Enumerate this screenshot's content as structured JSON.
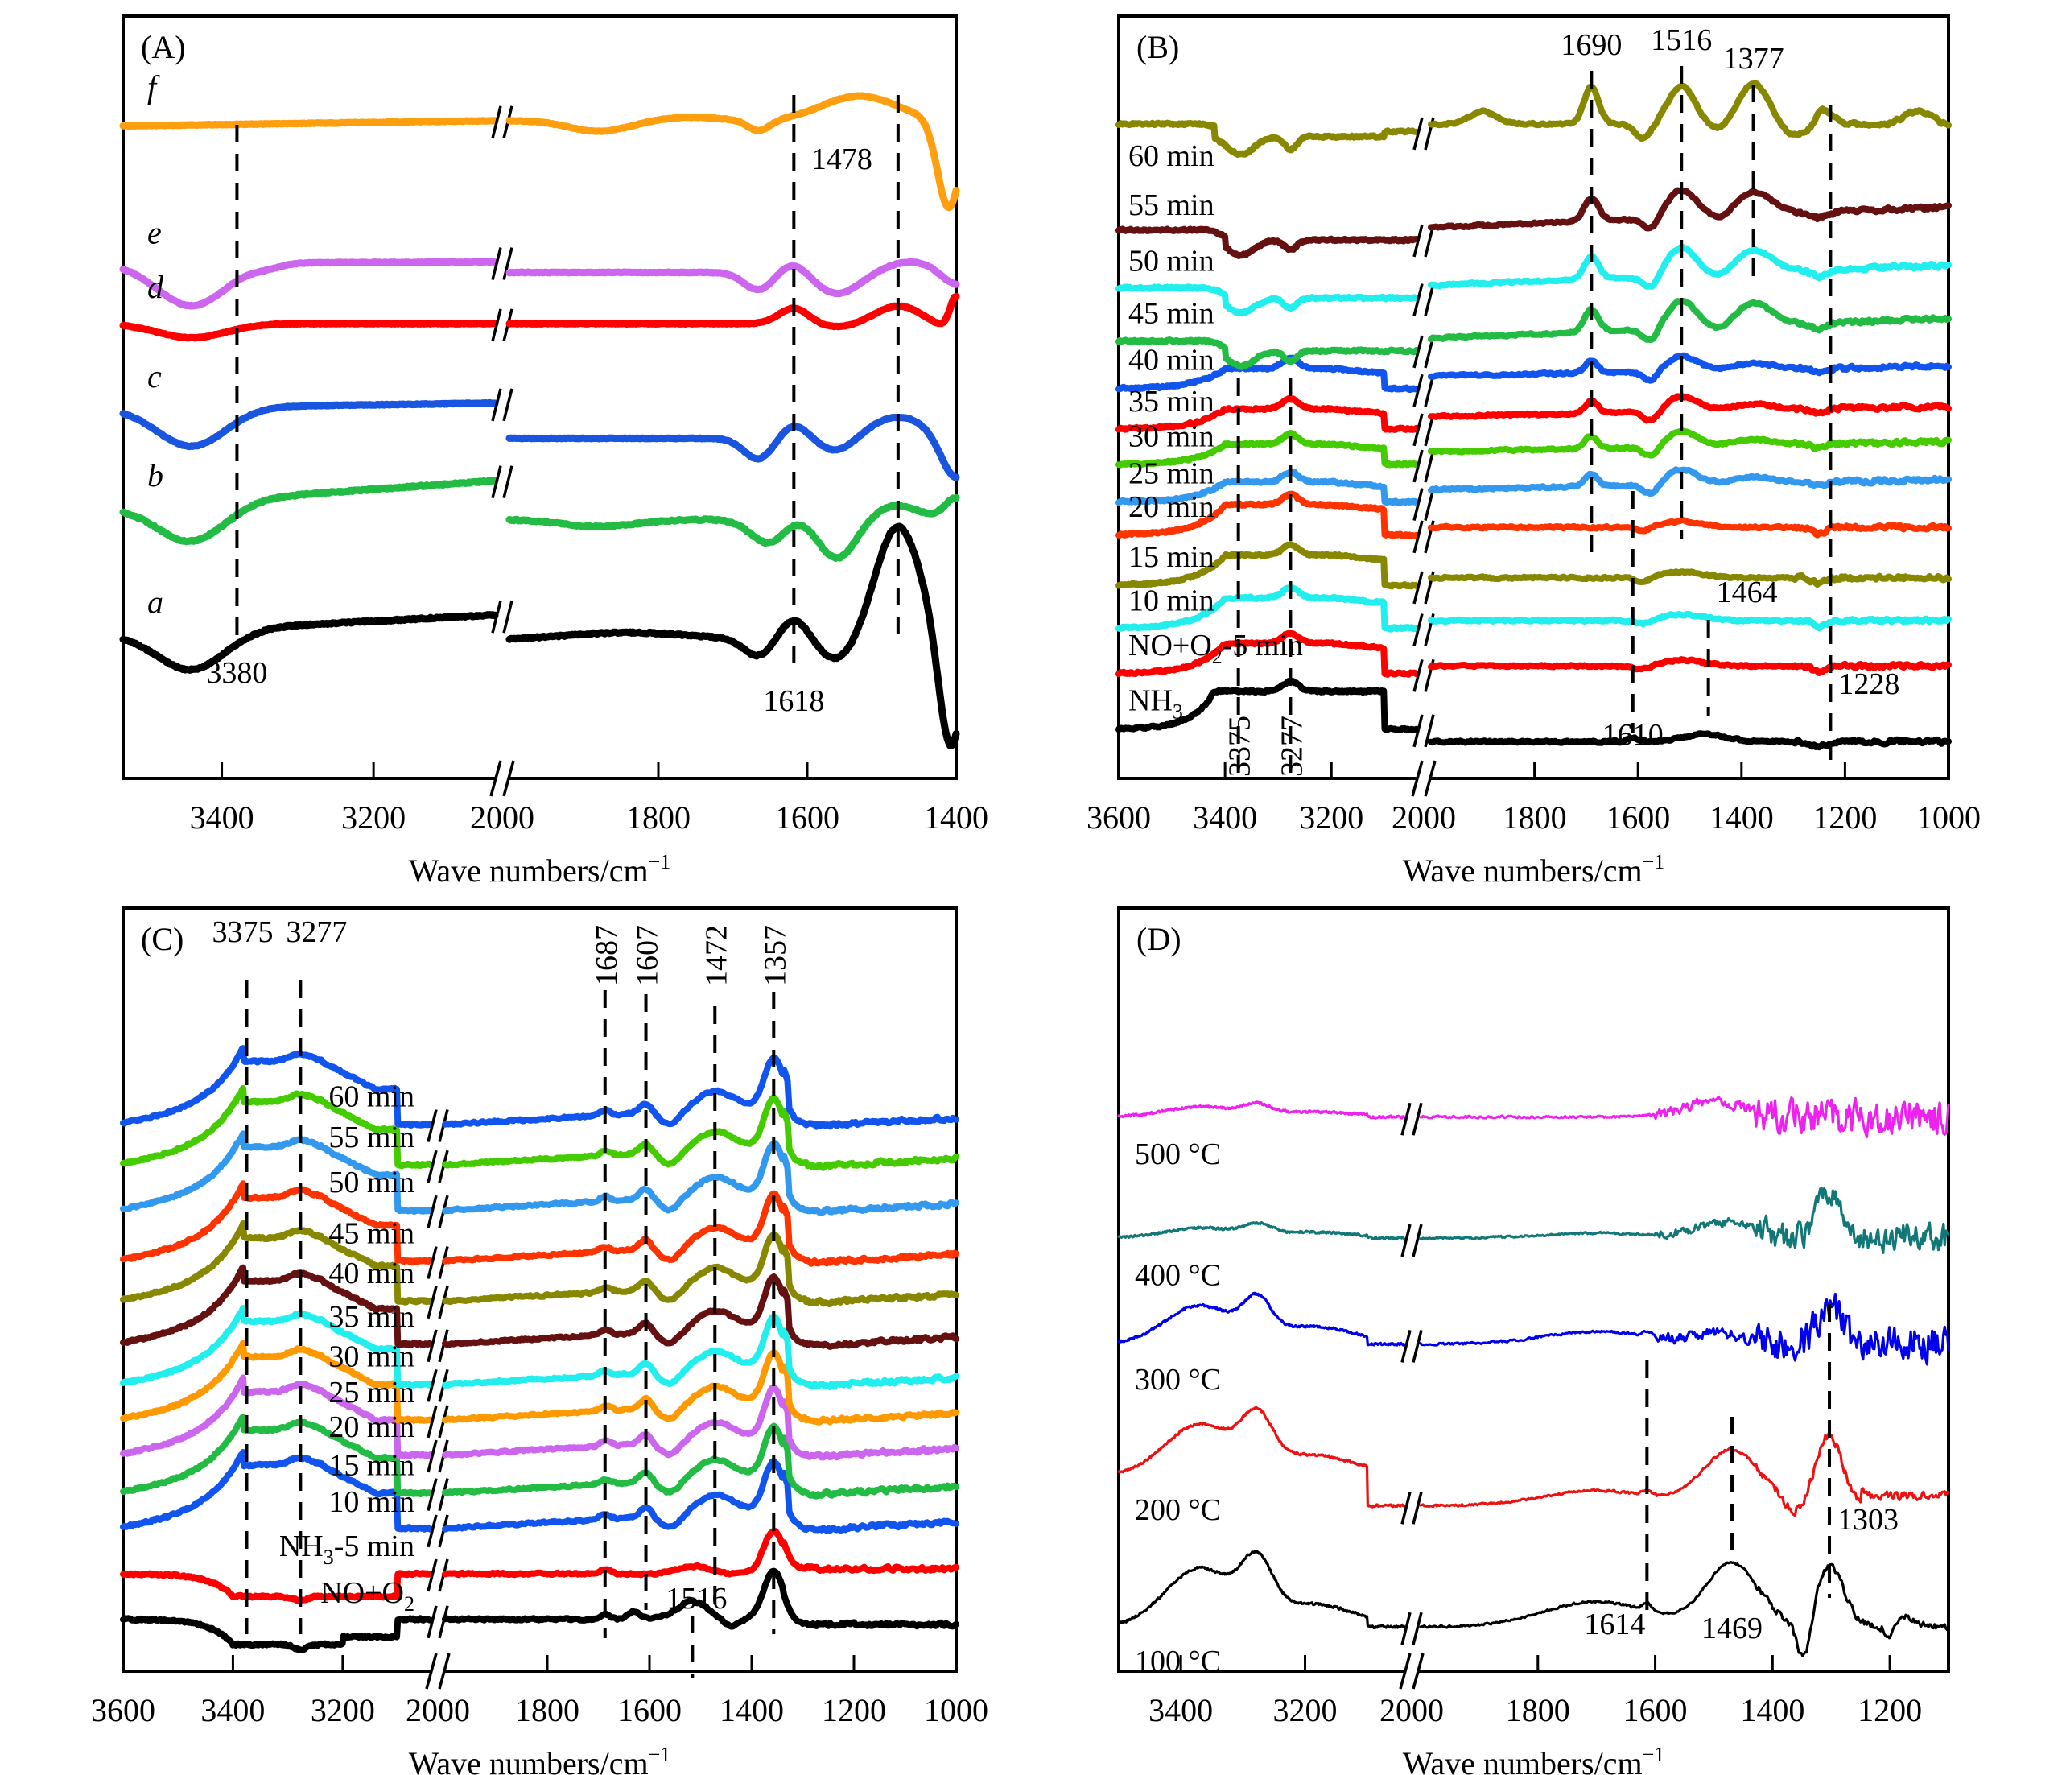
{
  "figure": {
    "axis_title": "Wave numbers/cm",
    "axis_title_sup": "−1"
  },
  "chart_data": [
    {
      "id": "A",
      "type": "line",
      "title": "(A)",
      "xlabel": "Wave numbers/cm−1",
      "ylabel": "",
      "x_reversed": true,
      "x_segments": [
        [
          3530,
          3040
        ],
        [
          2000,
          1400
        ]
      ],
      "x_break_label": "2000",
      "x_ticks": [
        {
          "value": 3400,
          "label": "3400",
          "segment": 0
        },
        {
          "value": 3200,
          "label": "3200",
          "segment": 0
        },
        {
          "value": 2000,
          "label": "2000",
          "segment": 1
        },
        {
          "value": 1800,
          "label": "1800",
          "segment": 1
        },
        {
          "value": 1600,
          "label": "1600",
          "segment": 1
        },
        {
          "value": 1400,
          "label": "1400",
          "segment": 1
        }
      ],
      "y_range": [
        0,
        10
      ],
      "grid": false,
      "line_style": "thick",
      "series": [
        {
          "name": "a",
          "color": "#000000",
          "offset": 1.7,
          "slope_left": 0.55,
          "right_shift": -0.35,
          "noise": 0.02,
          "features": [
            [
              3440,
              -0.55,
              45
            ],
            [
              1840,
              0.1,
              80
            ],
            [
              1665,
              -0.25,
              20
            ],
            [
              1618,
              0.3,
              20
            ],
            [
              1560,
              -0.3,
              25
            ],
            [
              1478,
              1.6,
              30
            ],
            [
              1408,
              -1.6,
              15
            ]
          ]
        },
        {
          "name": "b",
          "color": "#22bb44",
          "offset": 3.5,
          "slope_left": 0.75,
          "right_shift": -0.55,
          "noise": 0.02,
          "features": [
            [
              3440,
              -0.55,
              45
            ],
            [
              1880,
              -0.1,
              50
            ],
            [
              1650,
              -0.35,
              25
            ],
            [
              1618,
              0.1,
              20
            ],
            [
              1560,
              -0.55,
              25
            ],
            [
              1480,
              0.2,
              30
            ],
            [
              1400,
              0.3,
              15
            ]
          ]
        },
        {
          "name": "c",
          "color": "#1a55e0",
          "offset": 4.9,
          "slope_left": 0.15,
          "right_shift": -0.5,
          "noise": 0.01,
          "features": [
            [
              3440,
              -0.55,
              45
            ],
            [
              1665,
              -0.3,
              20
            ],
            [
              1618,
              0.2,
              20
            ],
            [
              1560,
              -0.2,
              25
            ],
            [
              1478,
              0.3,
              40
            ],
            [
              1400,
              -0.6,
              20
            ]
          ]
        },
        {
          "name": "d",
          "color": "#ff0000",
          "offset": 6.1,
          "slope_left": 0.0,
          "right_shift": 0.0,
          "noise": 0.01,
          "features": [
            [
              3440,
              -0.2,
              45
            ],
            [
              1618,
              0.22,
              20
            ],
            [
              1560,
              -0.05,
              25
            ],
            [
              1478,
              0.25,
              30
            ],
            [
              1420,
              -0.05,
              15
            ],
            [
              1400,
              0.4,
              8
            ]
          ]
        },
        {
          "name": "e",
          "color": "#cc66ee",
          "offset": 6.95,
          "slope_left": 0.05,
          "right_shift": -0.15,
          "noise": 0.01,
          "features": [
            [
              3440,
              -0.6,
              45
            ],
            [
              3340,
              -0.05,
              20
            ],
            [
              1665,
              -0.25,
              20
            ],
            [
              1618,
              0.15,
              20
            ],
            [
              1560,
              -0.3,
              30
            ],
            [
              1460,
              0.15,
              35
            ],
            [
              1400,
              -0.2,
              20
            ]
          ]
        },
        {
          "name": "f",
          "color": "#ff9f0f",
          "offset": 8.9,
          "slope_left": 0.15,
          "right_shift": 0.0,
          "noise": 0.01,
          "features": [
            [
              1880,
              -0.15,
              40
            ],
            [
              1760,
              0.05,
              40
            ],
            [
              1665,
              -0.15,
              15
            ],
            [
              1530,
              0.35,
              50
            ],
            [
              1410,
              -1.25,
              15
            ]
          ]
        }
      ],
      "series_labels": [
        {
          "series": "a",
          "text": "a"
        },
        {
          "series": "b",
          "text": "b"
        },
        {
          "series": "c",
          "text": "c"
        },
        {
          "series": "d",
          "text": "d"
        },
        {
          "series": "e",
          "text": "e"
        },
        {
          "series": "f",
          "text": "f"
        }
      ],
      "dashed_lines": [
        {
          "x": 3380,
          "label": "3380",
          "label_pos": "below"
        },
        {
          "x": 1618,
          "label": "1618",
          "label_pos": "below"
        },
        {
          "x": 1478,
          "label": "1478",
          "label_pos": "upper-left"
        }
      ]
    },
    {
      "id": "B",
      "type": "line",
      "title": "(B)",
      "xlabel": "Wave numbers/cm−1",
      "ylabel": "",
      "x_reversed": true,
      "x_segments": [
        [
          3600,
          3040
        ],
        [
          2000,
          1000
        ]
      ],
      "x_break_label": "2000",
      "x_ticks": [
        {
          "value": 3600,
          "label": "3600",
          "segment": 0
        },
        {
          "value": 3400,
          "label": "3400",
          "segment": 0
        },
        {
          "value": 3200,
          "label": "3200",
          "segment": 0
        },
        {
          "value": 2000,
          "label": "2000",
          "segment": 1
        },
        {
          "value": 1800,
          "label": "1800",
          "segment": 1
        },
        {
          "value": 1600,
          "label": "1600",
          "segment": 1
        },
        {
          "value": 1400,
          "label": "1400",
          "segment": 1
        },
        {
          "value": 1200,
          "label": "1200",
          "segment": 1
        },
        {
          "value": 1000,
          "label": "1000",
          "segment": 1
        }
      ],
      "y_range": [
        0,
        14
      ],
      "grid": false,
      "line_style": "thick",
      "series": [
        {
          "name": "NH3",
          "color": "#000000",
          "offset": 0.5,
          "shape": "nh3"
        },
        {
          "name": "NO+O2-5 min",
          "color": "#ff0000",
          "offset": 1.6,
          "shape": "early"
        },
        {
          "name": "10 min",
          "color": "#22eeee",
          "offset": 2.5,
          "shape": "early"
        },
        {
          "name": "15 min",
          "color": "#888800",
          "offset": 3.35,
          "shape": "early"
        },
        {
          "name": "20 min",
          "color": "#ff3300",
          "offset": 4.35,
          "shape": "early"
        },
        {
          "name": "25 min",
          "color": "#3399ee",
          "offset": 5.0,
          "shape": "mid"
        },
        {
          "name": "30 min",
          "color": "#44cc00",
          "offset": 5.75,
          "shape": "mid"
        },
        {
          "name": "35 min",
          "color": "#ff0000",
          "offset": 6.45,
          "shape": "mid"
        },
        {
          "name": "40 min",
          "color": "#1155ee",
          "offset": 7.25,
          "shape": "mid"
        },
        {
          "name": "45 min",
          "color": "#22bb44",
          "offset": 8.0,
          "shape": "late"
        },
        {
          "name": "50 min",
          "color": "#22eeee",
          "offset": 9.05,
          "shape": "late"
        },
        {
          "name": "55 min",
          "color": "#661111",
          "offset": 10.2,
          "shape": "late"
        },
        {
          "name": "60 min",
          "color": "#888800",
          "offset": 12.35,
          "shape": "latest"
        }
      ],
      "series_labels": [
        {
          "series": "NH3",
          "text": "NH",
          "sub": "3"
        },
        {
          "series": "NO+O2-5 min",
          "text": "NO+O",
          "sub": "2",
          "suffix": "-5 min"
        },
        {
          "series": "10 min",
          "text": "10 min"
        },
        {
          "series": "15 min",
          "text": "15 min"
        },
        {
          "series": "20 min",
          "text": "20 min"
        },
        {
          "series": "25 min",
          "text": "25 min"
        },
        {
          "series": "30 min",
          "text": "30 min"
        },
        {
          "series": "35 min",
          "text": "35 min"
        },
        {
          "series": "40 min",
          "text": "40 min"
        },
        {
          "series": "45 min",
          "text": "45 min"
        },
        {
          "series": "50 min",
          "text": "50 min"
        },
        {
          "series": "55 min",
          "text": "55 min"
        },
        {
          "series": "60 min",
          "text": "60 min"
        }
      ],
      "dashed_lines": [
        {
          "x": 3375,
          "label": "3375",
          "label_pos": "rotated-bottom"
        },
        {
          "x": 3277,
          "label": "3277",
          "label_pos": "rotated-bottom"
        },
        {
          "x": 1690,
          "label": "1690",
          "label_pos": "top"
        },
        {
          "x": 1610,
          "label": "1610",
          "label_pos": "below"
        },
        {
          "x": 1516,
          "label": "1516",
          "label_pos": "top"
        },
        {
          "x": 1464,
          "label": "1464",
          "label_pos": "above"
        },
        {
          "x": 1377,
          "label": "1377",
          "label_pos": "top"
        },
        {
          "x": 1228,
          "label": "1228",
          "label_pos": "right"
        }
      ]
    },
    {
      "id": "C",
      "type": "line",
      "title": "(C)",
      "xlabel": "Wave numbers/cm−1",
      "ylabel": "",
      "x_reversed": true,
      "x_segments": [
        [
          3600,
          3040
        ],
        [
          2000,
          1000
        ]
      ],
      "x_break_label": "2000",
      "x_ticks": [
        {
          "value": 3600,
          "label": "3600",
          "segment": 0
        },
        {
          "value": 3400,
          "label": "3400",
          "segment": 0
        },
        {
          "value": 3200,
          "label": "3200",
          "segment": 0
        },
        {
          "value": 2000,
          "label": "2000",
          "segment": 1
        },
        {
          "value": 1800,
          "label": "1800",
          "segment": 1
        },
        {
          "value": 1600,
          "label": "1600",
          "segment": 1
        },
        {
          "value": 1400,
          "label": "1400",
          "segment": 1
        },
        {
          "value": 1200,
          "label": "1200",
          "segment": 1
        },
        {
          "value": 1000,
          "label": "1000",
          "segment": 1
        }
      ],
      "y_range": [
        0,
        14
      ],
      "grid": false,
      "line_style": "thick",
      "series": [
        {
          "name": "NO+O2",
          "color": "#000000",
          "offset": 0.55,
          "shape": "no"
        },
        {
          "name": "NH3-5 min",
          "color": "#ff0000",
          "offset": 1.45,
          "shape": "nh5"
        },
        {
          "name": "10 min",
          "color": "#1155ee",
          "offset": 2.35,
          "shape": "ads"
        },
        {
          "name": "15 min",
          "color": "#22bb44",
          "offset": 3.05,
          "shape": "ads"
        },
        {
          "name": "20 min",
          "color": "#cc66ee",
          "offset": 3.8,
          "shape": "ads"
        },
        {
          "name": "25 min",
          "color": "#ff9900",
          "offset": 4.5,
          "shape": "ads"
        },
        {
          "name": "30 min",
          "color": "#22eeee",
          "offset": 5.2,
          "shape": "ads"
        },
        {
          "name": "35 min",
          "color": "#661111",
          "offset": 6.0,
          "shape": "ads"
        },
        {
          "name": "40 min",
          "color": "#888800",
          "offset": 6.85,
          "shape": "ads"
        },
        {
          "name": "45 min",
          "color": "#ff3300",
          "offset": 7.65,
          "shape": "ads"
        },
        {
          "name": "50 min",
          "color": "#3399ee",
          "offset": 8.65,
          "shape": "ads"
        },
        {
          "name": "55 min",
          "color": "#44cc00",
          "offset": 9.55,
          "shape": "ads"
        },
        {
          "name": "60 min",
          "color": "#1155ee",
          "offset": 10.35,
          "shape": "ads"
        }
      ],
      "series_labels": [
        {
          "series": "NO+O2",
          "text": "NO+O",
          "sub": "2"
        },
        {
          "series": "NH3-5 min",
          "text": "NH",
          "sub": "3",
          "suffix": "-5 min"
        },
        {
          "series": "10 min",
          "text": "10 min"
        },
        {
          "series": "15 min",
          "text": "15 min"
        },
        {
          "series": "20 min",
          "text": "20 min"
        },
        {
          "series": "25 min",
          "text": "25 min"
        },
        {
          "series": "30 min",
          "text": "30 min"
        },
        {
          "series": "35 min",
          "text": "35 min"
        },
        {
          "series": "40 min",
          "text": "40 min"
        },
        {
          "series": "45 min",
          "text": "45 min"
        },
        {
          "series": "50 min",
          "text": "50 min"
        },
        {
          "series": "55 min",
          "text": "55 min"
        },
        {
          "series": "60 min",
          "text": "60 min"
        }
      ],
      "dashed_lines": [
        {
          "x": 3375,
          "label": "3375",
          "label_pos": "top"
        },
        {
          "x": 3277,
          "label": "3277",
          "label_pos": "top"
        },
        {
          "x": 1687,
          "label": "1687",
          "label_pos": "rotated-top"
        },
        {
          "x": 1607,
          "label": "1607",
          "label_pos": "rotated-top"
        },
        {
          "x": 1516,
          "label": "1516",
          "label_pos": "above"
        },
        {
          "x": 1472,
          "label": "1472",
          "label_pos": "rotated-top"
        },
        {
          "x": 1357,
          "label": "1357",
          "label_pos": "rotated-top"
        }
      ]
    },
    {
      "id": "D",
      "type": "line",
      "title": "(D)",
      "xlabel": "Wave numbers/cm−1",
      "ylabel": "",
      "x_reversed": true,
      "x_segments": [
        [
          3500,
          3040
        ],
        [
          2000,
          1100
        ]
      ],
      "x_break_label": "2000",
      "x_ticks": [
        {
          "value": 3400,
          "label": "3400",
          "segment": 0
        },
        {
          "value": 3200,
          "label": "3200",
          "segment": 0
        },
        {
          "value": 2000,
          "label": "2000",
          "segment": 1
        },
        {
          "value": 1800,
          "label": "1800",
          "segment": 1
        },
        {
          "value": 1600,
          "label": "1600",
          "segment": 1
        },
        {
          "value": 1400,
          "label": "1400",
          "segment": 1
        },
        {
          "value": 1200,
          "label": "1200",
          "segment": 1
        }
      ],
      "y_range": [
        0,
        14
      ],
      "grid": false,
      "line_style": "thin",
      "series": [
        {
          "name": "100 °C",
          "color": "#000000",
          "offset": 0.4,
          "shape": "t100"
        },
        {
          "name": "200 °C",
          "color": "#ee1111",
          "offset": 3.4,
          "shape": "t200"
        },
        {
          "name": "300 °C",
          "color": "#0000ee",
          "offset": 6.0,
          "shape": "t300"
        },
        {
          "name": "400 °C",
          "color": "#117777",
          "offset": 8.1,
          "shape": "t400"
        },
        {
          "name": "500 °C",
          "color": "#ee22ee",
          "offset": 10.5,
          "shape": "t500"
        }
      ],
      "series_labels": [
        {
          "series": "100 °C",
          "text": "100 °C"
        },
        {
          "series": "200 °C",
          "text": "200 °C"
        },
        {
          "series": "300 °C",
          "text": "300 °C"
        },
        {
          "series": "400 °C",
          "text": "400 °C"
        },
        {
          "series": "500 °C",
          "text": "500 °C"
        }
      ],
      "dashed_lines": [
        {
          "x": 1614,
          "label": "1614",
          "label_pos": "below-left"
        },
        {
          "x": 1469,
          "label": "1469",
          "label_pos": "below"
        },
        {
          "x": 1303,
          "label": "1303",
          "label_pos": "right"
        }
      ]
    }
  ]
}
